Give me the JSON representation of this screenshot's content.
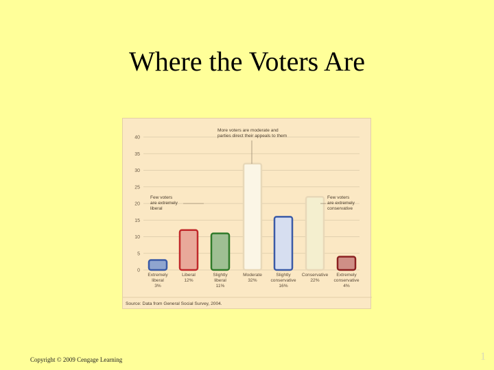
{
  "slide": {
    "title": "Where the Voters Are",
    "copyright": "Copyright © 2009 Cengage Learning",
    "page_number": "1"
  },
  "chart_data": {
    "type": "bar",
    "categories": [
      [
        "Extremely",
        "liberal",
        "3%"
      ],
      [
        "Liberal",
        "12%"
      ],
      [
        "Slightly",
        "liberal",
        "11%"
      ],
      [
        "Moderate",
        "32%"
      ],
      [
        "Slightly",
        "conservative",
        "16%"
      ],
      [
        "Conservative",
        "22%"
      ],
      [
        "Extremely",
        "conservative",
        "4%"
      ]
    ],
    "values": [
      3,
      12,
      11,
      32,
      16,
      22,
      4
    ],
    "ylim": [
      0,
      40
    ],
    "yticks": [
      0,
      5,
      10,
      15,
      20,
      25,
      30,
      35,
      40
    ],
    "grid": true,
    "colors": {
      "fills": [
        "#8fa5cf",
        "#e9a99a",
        "#9fbf93",
        "#fbf6e6",
        "#d6def0",
        "#f4efcf",
        "#cf8f86"
      ],
      "outlines": [
        "#3a5aa6",
        "#c0282a",
        "#2f7a2a",
        "#e8d8b8",
        "#3a5aa6",
        "#e8d8b8",
        "#8b2020"
      ],
      "background": "#fbe8c4",
      "grid": "#d9c9a8"
    },
    "annotations": {
      "top": [
        "More voters are moderate and",
        "parties direct their appeals to them"
      ],
      "left": [
        "Few voters",
        "are extremely",
        "liberal"
      ],
      "right": [
        "Few voters",
        "are extremely",
        "conservative"
      ]
    },
    "source": "Source: Data from General Social Survey, 2004."
  }
}
